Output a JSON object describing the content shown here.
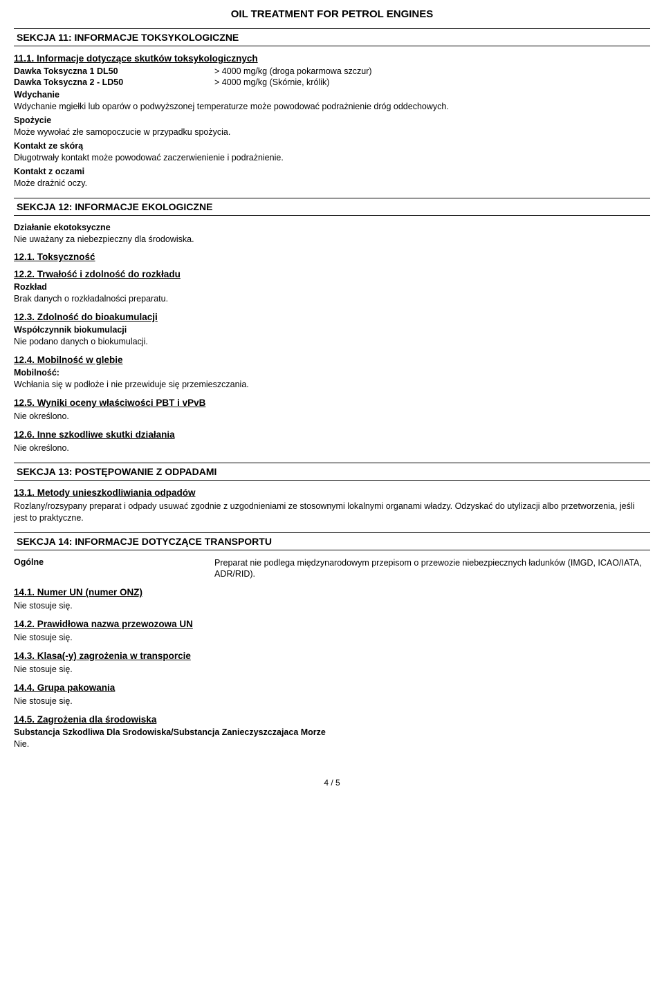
{
  "doc": {
    "title": "OIL TREATMENT FOR PETROL ENGINES"
  },
  "sec11": {
    "header": "SEKCJA 11: INFORMACJE TOKSYKOLOGICZNE",
    "sub1": "11.1. Informacje dotyczące skutków toksykologicznych",
    "rows": [
      {
        "k": "Dawka Toksyczna 1 DL50",
        "v": "> 4000 mg/kg (droga pokarmowa szczur)"
      },
      {
        "k": "Dawka Toksyczna 2 - LD50",
        "v": "> 4000 mg/kg (Skórnie,  królik)"
      }
    ],
    "wdychanie_label": "Wdychanie",
    "wdychanie_text": "Wdychanie mgiełki lub oparów o podwyższonej temperaturze może powodować podrażnienie dróg oddechowych.",
    "spozycie_label": "Spożycie",
    "spozycie_text": "Może wywołać złe samopoczucie w przypadku spożycia.",
    "skora_label": "Kontakt ze skórą",
    "skora_text": "Długotrwały kontakt może powodować zaczerwienienie i podrażnienie.",
    "oczy_label": "Kontakt z oczami",
    "oczy_text": "Może drażnić oczy."
  },
  "sec12": {
    "header": "SEKCJA 12: INFORMACJE EKOLOGICZNE",
    "eko_label": "Działanie ekotoksyczne",
    "eko_text": "Nie uważany za niebezpieczny dla środowiska.",
    "s1": "12.1. Toksyczność",
    "s2": "12.2. Trwałość i zdolność do rozkładu",
    "rozklad_label": "Rozkład",
    "rozklad_text": "Brak danych o rozkładalności preparatu.",
    "s3": "12.3. Zdolność do bioakumulacji",
    "biok_label": "Współczynnik biokumulacji",
    "biok_text": "Nie podano danych o biokumulacji.",
    "s4": "12.4. Mobilność w glebie",
    "mob_label": "Mobilność:",
    "mob_text": "Wchłania się w podłoże i nie przewiduje się przemieszczania.",
    "s5": "12.5. Wyniki oceny właściwości PBT i vPvB",
    "s5_text": "Nie określono.",
    "s6": "12.6. Inne szkodliwe skutki działania",
    "s6_text": "Nie określono."
  },
  "sec13": {
    "header": "SEKCJA 13: POSTĘPOWANIE Z ODPADAMI",
    "s1": "13.1. Metody unieszkodliwiania odpadów",
    "text": "Rozlany/rozsypany preparat i odpady usuwać zgodnie z uzgodnieniami ze stosownymi lokalnymi organami władzy. Odzyskać do utylizacji albo przetworzenia,  jeśli jest to praktyczne."
  },
  "sec14": {
    "header": "SEKCJA 14: INFORMACJE DOTYCZĄCE TRANSPORTU",
    "general_label": "Ogólne",
    "general_text": "Preparat nie podlega międzynarodowym przepisom o przewozie niebezpiecznych ładunków (IMGD,  ICAO/IATA,  ADR/RID).",
    "s1": "14.1. Numer UN (numer ONZ)",
    "s1_text": "Nie stosuje się.",
    "s2": "14.2. Prawidłowa nazwa przewozowa UN",
    "s2_text": "Nie stosuje się.",
    "s3": "14.3. Klasa(-y) zagrożenia w transporcie",
    "s3_text": "Nie stosuje się.",
    "s4": "14.4. Grupa pakowania",
    "s4_text": "Nie stosuje się.",
    "s5": "14.5. Zagrożenia dla środowiska",
    "morze_label": "Substancja Szkodliwa Dla Srodowiska/Substancja Zanieczyszczajaca Morze",
    "morze_text": "Nie."
  },
  "footer": "4 /  5"
}
